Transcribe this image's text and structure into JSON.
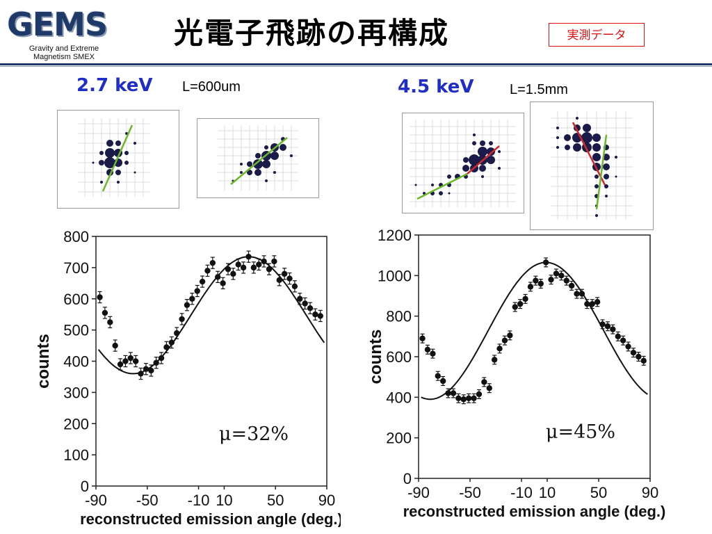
{
  "logo": {
    "text": "GEMS",
    "subtitle_line1": "Gravity and Extreme",
    "subtitle_line2": "Magnetism SMEX"
  },
  "header": {
    "title": "光電子飛跡の再構成",
    "badge": "実測データ"
  },
  "panels": {
    "left": {
      "energy": "2.7 keV",
      "length": "L=600um"
    },
    "right": {
      "energy": "4.5 keV",
      "length": "L=1.5mm"
    }
  },
  "colors": {
    "accent_blue": "#1f2ec8",
    "badge_red": "#e01010",
    "dot": "#1b1b4a",
    "fit_green": "#6ab82a",
    "fit_red": "#d02828",
    "rule": "#1f3a68"
  },
  "chart_data": [
    {
      "type": "scatter",
      "title": "",
      "xlabel": "reconstructed emission angle (deg.)",
      "ylabel": "counts",
      "xlim": [
        -90,
        90
      ],
      "ylim": [
        0,
        800
      ],
      "xticks": [
        "-90",
        "-50",
        "-10",
        "10",
        "50",
        "90"
      ],
      "xtick_values": [
        -90,
        -50,
        -10,
        10,
        50,
        90
      ],
      "yticks": [
        "0",
        "100",
        "200",
        "300",
        "400",
        "500",
        "600",
        "700",
        "800"
      ],
      "ytick_values": [
        0,
        100,
        200,
        300,
        400,
        500,
        600,
        700,
        800
      ],
      "annotation": "μ=32%",
      "fit": "cosine",
      "series": [
        {
          "x": [
            -87,
            -83,
            -79,
            -75,
            -71,
            -67,
            -63,
            -59,
            -55,
            -51,
            -47,
            -43,
            -39,
            -35,
            -31,
            -27,
            -23,
            -19,
            -15,
            -11,
            -7,
            -3,
            1,
            5,
            9,
            13,
            17,
            21,
            25,
            29,
            33,
            37,
            41,
            45,
            49,
            53,
            57,
            61,
            65,
            69,
            73,
            77,
            81,
            85
          ],
          "y": [
            605,
            555,
            525,
            450,
            390,
            400,
            410,
            400,
            360,
            375,
            370,
            395,
            410,
            445,
            460,
            490,
            535,
            580,
            600,
            625,
            655,
            690,
            715,
            670,
            650,
            695,
            680,
            710,
            700,
            735,
            700,
            710,
            720,
            695,
            720,
            660,
            680,
            665,
            640,
            600,
            585,
            570,
            550,
            545
          ],
          "yerr": 18
        }
      ]
    },
    {
      "type": "scatter",
      "title": "",
      "xlabel": "reconstructed emission angle (deg.)",
      "ylabel": "counts",
      "xlim": [
        -90,
        90
      ],
      "ylim": [
        0,
        1200
      ],
      "xticks": [
        "-90",
        "-50",
        "-10",
        "10",
        "50",
        "90"
      ],
      "xtick_values": [
        -90,
        -50,
        -10,
        10,
        50,
        90
      ],
      "yticks": [
        "0",
        "200",
        "400",
        "600",
        "800",
        "1000",
        "1200"
      ],
      "ytick_values": [
        0,
        200,
        400,
        600,
        800,
        1000,
        1200
      ],
      "annotation": "μ=45%",
      "fit": "cosine",
      "series": [
        {
          "x": [
            -87,
            -83,
            -79,
            -75,
            -71,
            -67,
            -63,
            -59,
            -55,
            -51,
            -47,
            -43,
            -39,
            -35,
            -31,
            -27,
            -23,
            -19,
            -15,
            -11,
            -7,
            -3,
            1,
            5,
            9,
            13,
            17,
            21,
            25,
            29,
            33,
            37,
            41,
            45,
            49,
            53,
            57,
            61,
            65,
            69,
            73,
            77,
            81,
            85
          ],
          "y": [
            690,
            635,
            615,
            505,
            480,
            420,
            420,
            395,
            390,
            395,
            395,
            415,
            475,
            445,
            585,
            640,
            680,
            705,
            845,
            860,
            885,
            945,
            975,
            960,
            1065,
            980,
            1010,
            1000,
            975,
            950,
            910,
            910,
            860,
            860,
            870,
            760,
            750,
            735,
            700,
            680,
            650,
            620,
            600,
            580
          ],
          "yerr": 22
        }
      ]
    }
  ]
}
